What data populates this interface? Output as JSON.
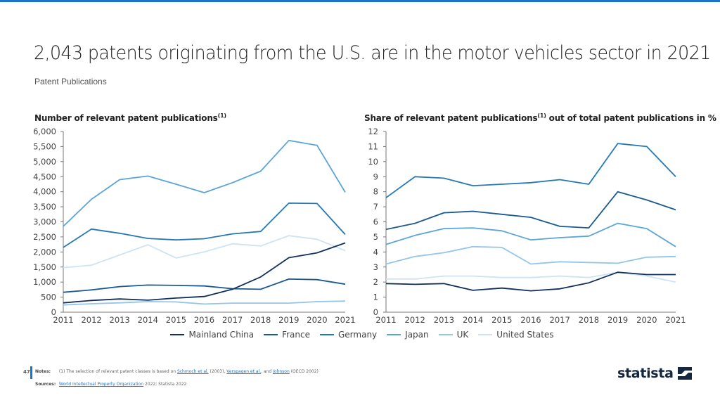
{
  "header": {
    "title": "2,043 patents originating from the U.S. are in the motor vehicles sector in 2021",
    "subtitle": "Patent Publications"
  },
  "colors": {
    "accent": "#1a73c8",
    "Mainland China": "#12305c",
    "France": "#1b5a8e",
    "Germany": "#2479b5",
    "Japan": "#5aa5d8",
    "UK": "#93c6e8",
    "United States": "#cde3f3"
  },
  "legend": [
    {
      "name": "Mainland China",
      "color": "#12305c"
    },
    {
      "name": "France",
      "color": "#1b5a8e"
    },
    {
      "name": "Germany",
      "color": "#2479b5"
    },
    {
      "name": "Japan",
      "color": "#5aa5d8"
    },
    {
      "name": "UK",
      "color": "#93c6e8"
    },
    {
      "name": "United States",
      "color": "#cde3f3"
    }
  ],
  "chart_data": [
    {
      "type": "line",
      "title": "Number of relevant patent publications",
      "title_superscript": "(1)",
      "xlabel": "",
      "ylabel": "",
      "x": [
        "2011",
        "2012",
        "2013",
        "2014",
        "2015",
        "2016",
        "2017",
        "2018",
        "2019",
        "2020",
        "2021"
      ],
      "ylim": [
        0,
        6000
      ],
      "yticks": [
        0,
        500,
        1000,
        1500,
        2000,
        2500,
        3000,
        3500,
        4000,
        4500,
        5000,
        5500,
        6000
      ],
      "ytick_labels": [
        "0",
        "500",
        "1,000",
        "1,500",
        "2,000",
        "2,500",
        "3,000",
        "3,500",
        "4,000",
        "4,500",
        "5,000",
        "5,500",
        "6,000"
      ],
      "grid": false,
      "legend_position": "bottom-center",
      "series": [
        {
          "name": "Mainland China",
          "values": [
            310,
            390,
            440,
            400,
            470,
            520,
            760,
            1170,
            1810,
            1970,
            2300
          ]
        },
        {
          "name": "France",
          "values": [
            660,
            740,
            850,
            900,
            890,
            870,
            780,
            760,
            1100,
            1080,
            930
          ]
        },
        {
          "name": "Germany",
          "values": [
            2150,
            2760,
            2620,
            2450,
            2400,
            2440,
            2600,
            2680,
            3620,
            3610,
            2580
          ]
        },
        {
          "name": "Japan",
          "values": [
            2850,
            3750,
            4400,
            4520,
            4250,
            3970,
            4300,
            4680,
            5700,
            5540,
            3980
          ]
        },
        {
          "name": "UK",
          "values": [
            240,
            280,
            310,
            350,
            340,
            270,
            300,
            300,
            300,
            350,
            370
          ]
        },
        {
          "name": "United States",
          "values": [
            1480,
            1560,
            1900,
            2240,
            1800,
            2000,
            2270,
            2200,
            2540,
            2420,
            2043
          ]
        }
      ]
    },
    {
      "type": "line",
      "title": "Share of relevant patent publications",
      "title_superscript": "(1)",
      "title_suffix": " out of total patent publications in %",
      "xlabel": "",
      "ylabel": "",
      "x": [
        "2011",
        "2012",
        "2013",
        "2014",
        "2015",
        "2016",
        "2017",
        "2018",
        "2019",
        "2020",
        "2021"
      ],
      "ylim": [
        0,
        12
      ],
      "yticks": [
        0,
        1,
        2,
        3,
        4,
        5,
        6,
        7,
        8,
        9,
        10,
        11,
        12
      ],
      "ytick_labels": [
        "0",
        "1",
        "2",
        "3",
        "4",
        "5",
        "6",
        "7",
        "8",
        "9",
        "10",
        "11",
        "12"
      ],
      "grid": false,
      "legend_position": "bottom-center",
      "series": [
        {
          "name": "Mainland China",
          "values": [
            1.9,
            1.85,
            1.9,
            1.45,
            1.6,
            1.42,
            1.55,
            1.95,
            2.65,
            2.5,
            2.5
          ]
        },
        {
          "name": "France",
          "values": [
            5.5,
            5.9,
            6.6,
            6.7,
            6.5,
            6.3,
            5.7,
            5.6,
            8.0,
            7.45,
            6.8
          ]
        },
        {
          "name": "Germany",
          "values": [
            7.6,
            9.0,
            8.9,
            8.4,
            8.5,
            8.6,
            8.8,
            8.5,
            11.2,
            11.0,
            9.0
          ]
        },
        {
          "name": "Japan",
          "values": [
            4.5,
            5.1,
            5.55,
            5.6,
            5.4,
            4.8,
            4.95,
            5.05,
            5.9,
            5.55,
            4.35
          ]
        },
        {
          "name": "UK",
          "values": [
            3.2,
            3.7,
            3.95,
            4.35,
            4.3,
            3.2,
            3.35,
            3.3,
            3.25,
            3.65,
            3.7
          ]
        },
        {
          "name": "United States",
          "values": [
            2.2,
            2.2,
            2.4,
            2.4,
            2.3,
            2.3,
            2.4,
            2.3,
            2.65,
            2.4,
            2.0
          ]
        }
      ]
    }
  ],
  "footer": {
    "page_number": "47",
    "notes_label": "Notes:",
    "notes_prefix": "(1) The selection of relevant patent classes is based on ",
    "notes_link1": "Schmoch et al.",
    "notes_mid1": " (2003), ",
    "notes_link2": "Verspagen et al.",
    "notes_mid2": ", and ",
    "notes_link3": "Johnson",
    "notes_suffix": " (OECD 2002)",
    "sources_label": "Sources:",
    "sources_link": "World Intellectual Property Organization",
    "sources_suffix": " 2022; Statista 2022",
    "logo_text": "statista"
  }
}
